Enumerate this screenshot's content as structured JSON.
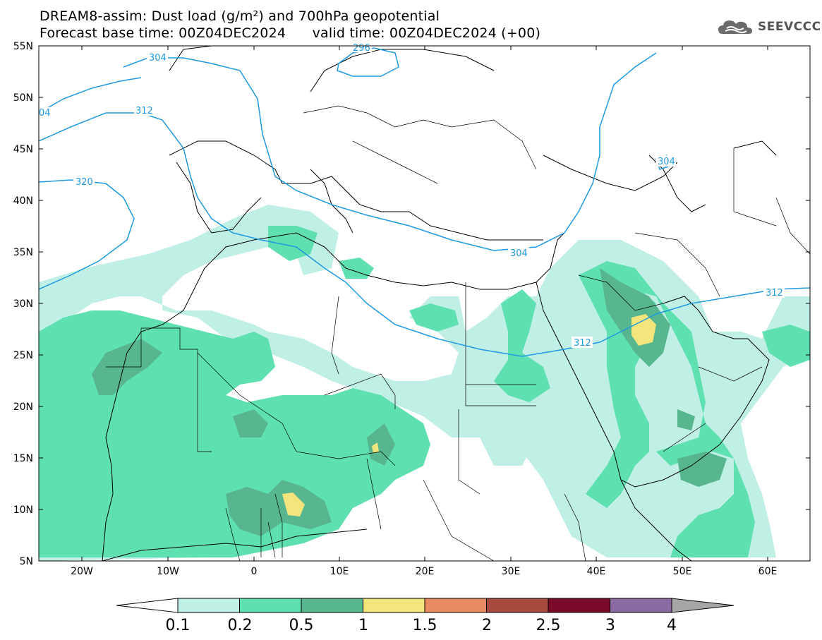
{
  "header": {
    "line1": "DREAM8-assim: Dust load (g/m²) and 700hPa geopotential",
    "line2": "Forecast base time: 00Z04DEC2024      valid time: 00Z04DEC2024 (+00)"
  },
  "logo": {
    "text": "SEEVCCC",
    "icon": "cloud-icon"
  },
  "axes": {
    "lon_labels": [
      "20W",
      "10W",
      "0",
      "10E",
      "20E",
      "30E",
      "40E",
      "50E",
      "60E"
    ],
    "lat_labels": [
      "55N",
      "50N",
      "45N",
      "40N",
      "35N",
      "30N",
      "25N",
      "20N",
      "15N",
      "10N",
      "5N"
    ]
  },
  "contour_labels": [
    "304",
    "296",
    "04",
    "312",
    "320",
    "304",
    "304",
    "312",
    "312"
  ],
  "colorbar": {
    "labels": [
      "0.1",
      "0.2",
      "0.5",
      "1",
      "1.5",
      "2",
      "2.5",
      "3",
      "4"
    ],
    "colors": [
      "#c0efe6",
      "#5fe0b1",
      "#57b68e",
      "#f2e57b",
      "#e88a62",
      "#a84a3e",
      "#7a0a2a",
      "#8a6aa0",
      "#a6a6a6"
    ]
  }
}
